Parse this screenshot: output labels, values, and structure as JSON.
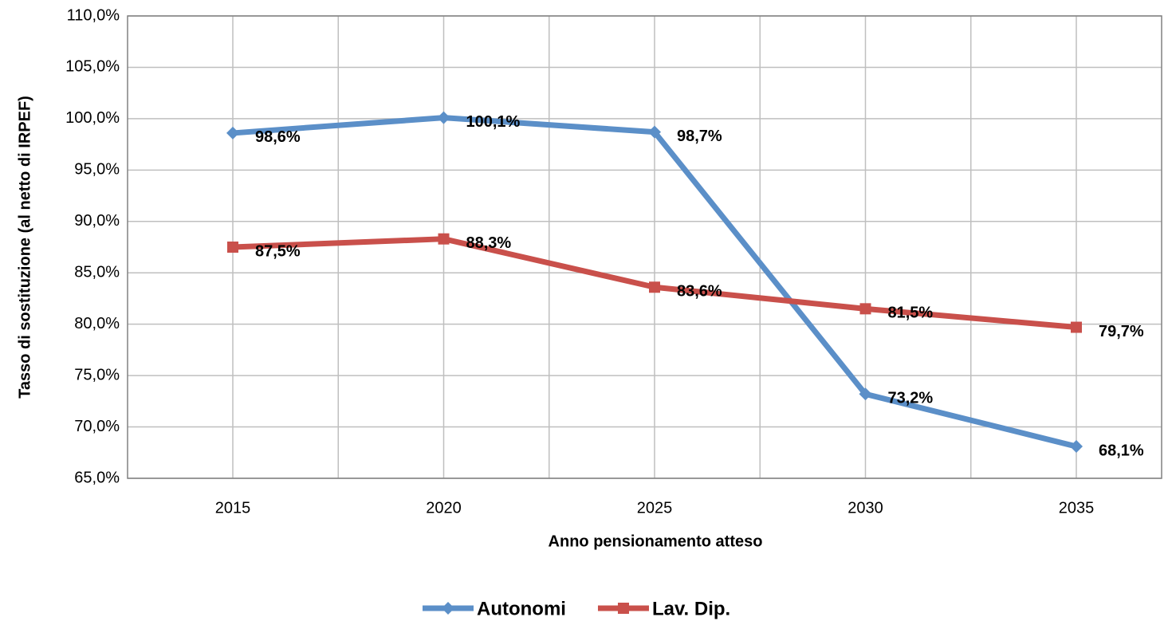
{
  "chart_data": {
    "type": "line",
    "x_label": "Anno pensionamento atteso",
    "y_label": "Tasso di sostituzione (al netto di IRPEF)",
    "categories": [
      "2015",
      "2020",
      "2025",
      "2030",
      "2035"
    ],
    "series": [
      {
        "name": "Autonomi",
        "color": "#5b8fc8",
        "marker": "diamond",
        "values": [
          98.6,
          100.1,
          98.7,
          73.2,
          68.1
        ],
        "value_labels": [
          "98,6%",
          "100,1%",
          "98,7%",
          "73,2%",
          "68,1%"
        ]
      },
      {
        "name": "Lav. Dip.",
        "color": "#c9504b",
        "marker": "square",
        "values": [
          87.5,
          88.3,
          83.6,
          81.5,
          79.7
        ],
        "value_labels": [
          "87,5%",
          "88,3%",
          "83,6%",
          "81,5%",
          "79,7%"
        ]
      }
    ],
    "ylim": [
      65,
      110
    ],
    "yticks": [
      {
        "value": 65,
        "label": "65,0%"
      },
      {
        "value": 70,
        "label": "70,0%"
      },
      {
        "value": 75,
        "label": "75,0%"
      },
      {
        "value": 80,
        "label": "80,0%"
      },
      {
        "value": 85,
        "label": "85,0%"
      },
      {
        "value": 90,
        "label": "90,0%"
      },
      {
        "value": 95,
        "label": "95,0%"
      },
      {
        "value": 100,
        "label": "100,0%"
      },
      {
        "value": 105,
        "label": "105,0%"
      },
      {
        "value": 110,
        "label": "110,0%"
      }
    ],
    "grid": true,
    "legend": "bottom"
  }
}
